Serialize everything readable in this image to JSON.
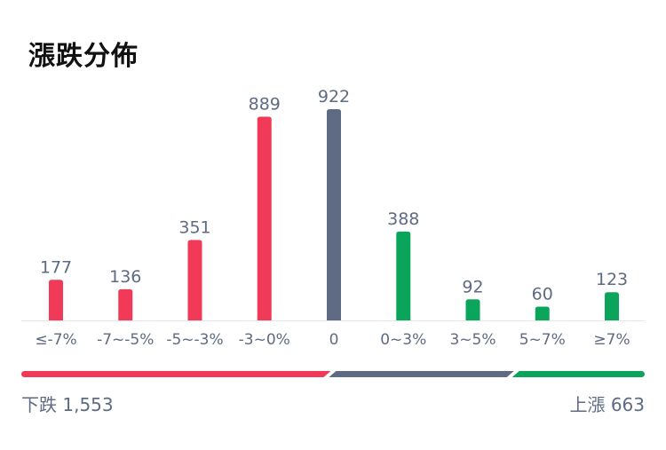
{
  "title": "漲跌分佈",
  "colors": {
    "down": "#f03a57",
    "flat": "#5e6b82",
    "up": "#0aa55a",
    "label": "#5e6b82",
    "baseline": "#e6e6e6"
  },
  "chart_data": {
    "type": "bar",
    "title": "漲跌分佈",
    "categories": [
      "≤-7%",
      "-7~-5%",
      "-5~-3%",
      "-3~0%",
      "0",
      "0~3%",
      "3~5%",
      "5~7%",
      "≥7%"
    ],
    "values": [
      177,
      136,
      351,
      889,
      922,
      388,
      92,
      60,
      123
    ],
    "groups": [
      "down",
      "down",
      "down",
      "down",
      "flat",
      "up",
      "up",
      "up",
      "up"
    ],
    "ylim": [
      0,
      922
    ],
    "grid": false,
    "legend": "none"
  },
  "summary": {
    "down_label": "下跌 1,553",
    "up_label": "上漲 663",
    "down_count": 1553,
    "flat_count": 922,
    "up_count": 663
  }
}
